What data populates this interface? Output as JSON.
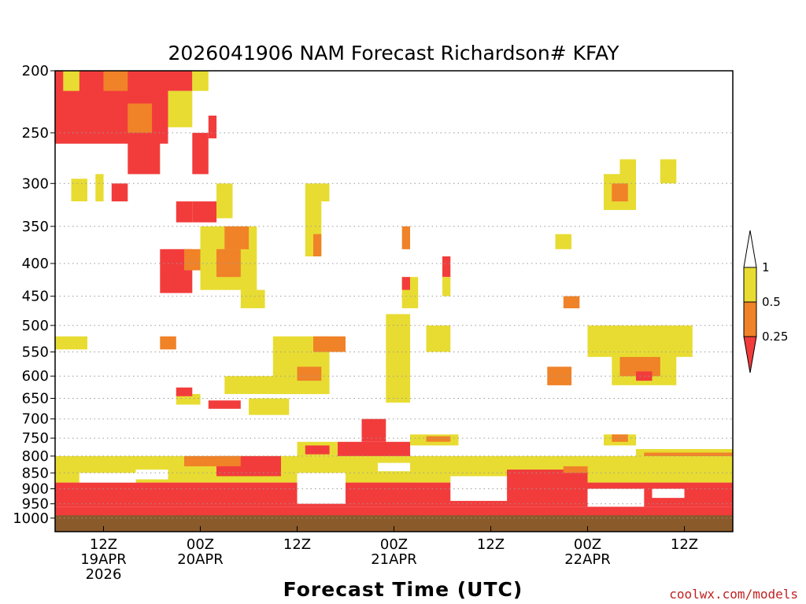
{
  "chart_data": {
    "type": "heatmap",
    "title": "2026041906 NAM Forecast Richardson# KFAY",
    "xlabel": "Forecast Time (UTC)",
    "ylabel": "",
    "credit": "coolwx.com/models",
    "y_axis": {
      "scale": "pressure (hPa), top 200 to bottom 1000",
      "ticks": [
        "200",
        "250",
        "300",
        "350",
        "400",
        "450",
        "500",
        "550",
        "600",
        "650",
        "700",
        "750",
        "800",
        "850",
        "900",
        "950",
        "1000"
      ]
    },
    "x_axis": {
      "range_hours": [
        0,
        84
      ],
      "ticks": [
        {
          "hour": 6,
          "lines": [
            "12Z",
            "19APR",
            "2026"
          ]
        },
        {
          "hour": 18,
          "lines": [
            "00Z",
            "20APR"
          ]
        },
        {
          "hour": 30,
          "lines": [
            "12Z"
          ]
        },
        {
          "hour": 42,
          "lines": [
            "00Z",
            "21APR"
          ]
        },
        {
          "hour": 54,
          "lines": [
            "12Z"
          ]
        },
        {
          "hour": 66,
          "lines": [
            "00Z",
            "22APR"
          ]
        },
        {
          "hour": 78,
          "lines": [
            "12Z"
          ]
        }
      ]
    },
    "grid": "dotted horizontal at pressure levels",
    "legend": {
      "placement": "right",
      "bins": [
        {
          "label": "1",
          "color": "#ffffff"
        },
        {
          "label": "0.5",
          "color": "#e8dc32"
        },
        {
          "label": "0.25",
          "color": "#f08228"
        },
        {
          "label": "",
          "color": "#f23c3c"
        }
      ]
    },
    "colors": {
      "red": "#f23c3c",
      "orange": "#f08228",
      "yellow": "#e8dc32",
      "ground": "#8b5a2b"
    },
    "regions": [
      {
        "h0": 0,
        "h1": 14,
        "p0": 200,
        "p1": 260,
        "cat": "red"
      },
      {
        "h0": 6,
        "h1": 9,
        "p0": 200,
        "p1": 215,
        "cat": "orange"
      },
      {
        "h0": 9,
        "h1": 12,
        "p0": 225,
        "p1": 250,
        "cat": "orange"
      },
      {
        "h0": 1,
        "h1": 3,
        "p0": 200,
        "p1": 215,
        "cat": "yellow"
      },
      {
        "h0": 9,
        "h1": 13,
        "p0": 250,
        "p1": 290,
        "cat": "red"
      },
      {
        "h0": 13,
        "h1": 17,
        "p0": 200,
        "p1": 215,
        "cat": "red"
      },
      {
        "h0": 17,
        "h1": 19,
        "p0": 200,
        "p1": 215,
        "cat": "yellow"
      },
      {
        "h0": 14,
        "h1": 17,
        "p0": 215,
        "p1": 245,
        "cat": "yellow"
      },
      {
        "h0": 17,
        "h1": 19,
        "p0": 250,
        "p1": 290,
        "cat": "red"
      },
      {
        "h0": 19,
        "h1": 20,
        "p0": 235,
        "p1": 255,
        "cat": "red"
      },
      {
        "h0": 2,
        "h1": 4,
        "p0": 295,
        "p1": 320,
        "cat": "yellow"
      },
      {
        "h0": 5,
        "h1": 6,
        "p0": 290,
        "p1": 320,
        "cat": "yellow"
      },
      {
        "h0": 7,
        "h1": 9,
        "p0": 300,
        "p1": 320,
        "cat": "red"
      },
      {
        "h0": 15,
        "h1": 17,
        "p0": 320,
        "p1": 345,
        "cat": "red"
      },
      {
        "h0": 17,
        "h1": 20,
        "p0": 320,
        "p1": 345,
        "cat": "red"
      },
      {
        "h0": 20,
        "h1": 22,
        "p0": 300,
        "p1": 340,
        "cat": "yellow"
      },
      {
        "h0": 18,
        "h1": 25,
        "p0": 350,
        "p1": 440,
        "cat": "yellow"
      },
      {
        "h0": 13,
        "h1": 17,
        "p0": 380,
        "p1": 445,
        "cat": "red"
      },
      {
        "h0": 16,
        "h1": 18,
        "p0": 380,
        "p1": 410,
        "cat": "orange"
      },
      {
        "h0": 20,
        "h1": 23,
        "p0": 380,
        "p1": 420,
        "cat": "orange"
      },
      {
        "h0": 21,
        "h1": 24,
        "p0": 350,
        "p1": 380,
        "cat": "orange"
      },
      {
        "h0": 23,
        "h1": 26,
        "p0": 440,
        "p1": 470,
        "cat": "yellow"
      },
      {
        "h0": 0,
        "h1": 4,
        "p0": 520,
        "p1": 545,
        "cat": "yellow"
      },
      {
        "h0": 13,
        "h1": 15,
        "p0": 520,
        "p1": 545,
        "cat": "orange"
      },
      {
        "h0": 15,
        "h1": 18,
        "p0": 640,
        "p1": 665,
        "cat": "yellow"
      },
      {
        "h0": 15,
        "h1": 17,
        "p0": 625,
        "p1": 645,
        "cat": "red"
      },
      {
        "h0": 19,
        "h1": 23,
        "p0": 655,
        "p1": 675,
        "cat": "red"
      },
      {
        "h0": 21,
        "h1": 28,
        "p0": 600,
        "p1": 640,
        "cat": "yellow"
      },
      {
        "h0": 24,
        "h1": 29,
        "p0": 650,
        "p1": 690,
        "cat": "yellow"
      },
      {
        "h0": 27,
        "h1": 34,
        "p0": 520,
        "p1": 640,
        "cat": "yellow"
      },
      {
        "h0": 32,
        "h1": 36,
        "p0": 520,
        "p1": 550,
        "cat": "orange"
      },
      {
        "h0": 30,
        "h1": 33,
        "p0": 580,
        "p1": 610,
        "cat": "orange"
      },
      {
        "h0": 31,
        "h1": 33,
        "p0": 300,
        "p1": 390,
        "cat": "yellow"
      },
      {
        "h0": 32,
        "h1": 34,
        "p0": 300,
        "p1": 320,
        "cat": "yellow"
      },
      {
        "h0": 32,
        "h1": 33,
        "p0": 360,
        "p1": 390,
        "cat": "orange"
      },
      {
        "h0": 41,
        "h1": 44,
        "p0": 480,
        "p1": 660,
        "cat": "yellow"
      },
      {
        "h0": 43,
        "h1": 45,
        "p0": 420,
        "p1": 470,
        "cat": "yellow"
      },
      {
        "h0": 43,
        "h1": 44,
        "p0": 420,
        "p1": 440,
        "cat": "red"
      },
      {
        "h0": 46,
        "h1": 49,
        "p0": 500,
        "p1": 550,
        "cat": "yellow"
      },
      {
        "h0": 48,
        "h1": 49,
        "p0": 390,
        "p1": 420,
        "cat": "red"
      },
      {
        "h0": 48,
        "h1": 49,
        "p0": 420,
        "p1": 450,
        "cat": "yellow"
      },
      {
        "h0": 43,
        "h1": 44,
        "p0": 350,
        "p1": 380,
        "cat": "orange"
      },
      {
        "h0": 66,
        "h1": 79,
        "p0": 500,
        "p1": 560,
        "cat": "yellow"
      },
      {
        "h0": 69,
        "h1": 77,
        "p0": 550,
        "p1": 620,
        "cat": "yellow"
      },
      {
        "h0": 70,
        "h1": 75,
        "p0": 560,
        "p1": 600,
        "cat": "orange"
      },
      {
        "h0": 72,
        "h1": 74,
        "p0": 590,
        "p1": 610,
        "cat": "red"
      },
      {
        "h0": 68,
        "h1": 72,
        "p0": 290,
        "p1": 330,
        "cat": "yellow"
      },
      {
        "h0": 69,
        "h1": 71,
        "p0": 300,
        "p1": 320,
        "cat": "orange"
      },
      {
        "h0": 70,
        "h1": 72,
        "p0": 275,
        "p1": 295,
        "cat": "yellow"
      },
      {
        "h0": 75,
        "h1": 77,
        "p0": 275,
        "p1": 300,
        "cat": "yellow"
      },
      {
        "h0": 61,
        "h1": 64,
        "p0": 580,
        "p1": 620,
        "cat": "orange"
      },
      {
        "h0": 63,
        "h1": 65,
        "p0": 450,
        "p1": 470,
        "cat": "orange"
      },
      {
        "h0": 62,
        "h1": 64,
        "p0": 360,
        "p1": 380,
        "cat": "yellow"
      },
      {
        "h0": 38,
        "h1": 41,
        "p0": 700,
        "p1": 760,
        "cat": "red"
      },
      {
        "h0": 35,
        "h1": 44,
        "p0": 760,
        "p1": 880,
        "cat": "red"
      },
      {
        "h0": 30,
        "h1": 35,
        "p0": 760,
        "p1": 800,
        "cat": "yellow"
      },
      {
        "h0": 31,
        "h1": 34,
        "p0": 770,
        "p1": 795,
        "cat": "red"
      },
      {
        "h0": 44,
        "h1": 50,
        "p0": 740,
        "p1": 770,
        "cat": "yellow"
      },
      {
        "h0": 46,
        "h1": 49,
        "p0": 745,
        "p1": 760,
        "cat": "orange"
      },
      {
        "h0": 72,
        "h1": 84,
        "p0": 780,
        "p1": 820,
        "cat": "yellow"
      },
      {
        "h0": 73,
        "h1": 84,
        "p0": 790,
        "p1": 815,
        "cat": "orange"
      },
      {
        "h0": 76,
        "h1": 84,
        "p0": 800,
        "p1": 830,
        "cat": "red"
      },
      {
        "h0": 68,
        "h1": 72,
        "p0": 740,
        "p1": 770,
        "cat": "yellow"
      },
      {
        "h0": 69,
        "h1": 71,
        "p0": 740,
        "p1": 760,
        "cat": "orange"
      },
      {
        "h0": 0,
        "h1": 84,
        "p0": 800,
        "p1": 880,
        "cat": "yellow"
      },
      {
        "h0": 0,
        "h1": 84,
        "p0": 880,
        "p1": 960,
        "cat": "red"
      },
      {
        "h0": 0,
        "h1": 84,
        "p0": 960,
        "p1": 995,
        "cat": "red"
      },
      {
        "h0": 56,
        "h1": 66,
        "p0": 840,
        "p1": 900,
        "cat": "red"
      },
      {
        "h0": 63,
        "h1": 66,
        "p0": 830,
        "p1": 850,
        "cat": "orange"
      },
      {
        "h0": 20,
        "h1": 28,
        "p0": 800,
        "p1": 860,
        "cat": "red"
      },
      {
        "h0": 16,
        "h1": 23,
        "p0": 800,
        "p1": 830,
        "cat": "orange"
      }
    ],
    "gaps": [
      {
        "h0": 3,
        "h1": 10,
        "p0": 850,
        "p1": 880
      },
      {
        "h0": 30,
        "h1": 36,
        "p0": 850,
        "p1": 950
      },
      {
        "h0": 49,
        "h1": 56,
        "p0": 860,
        "p1": 940
      },
      {
        "h0": 66,
        "h1": 73,
        "p0": 900,
        "p1": 960
      },
      {
        "h0": 74,
        "h1": 78,
        "p0": 900,
        "p1": 930
      },
      {
        "h0": 10,
        "h1": 14,
        "p0": 840,
        "p1": 870
      },
      {
        "h0": 40,
        "h1": 44,
        "p0": 820,
        "p1": 845
      }
    ],
    "ground": {
      "p0": 990,
      "p1": 1050,
      "cat": "ground"
    }
  }
}
